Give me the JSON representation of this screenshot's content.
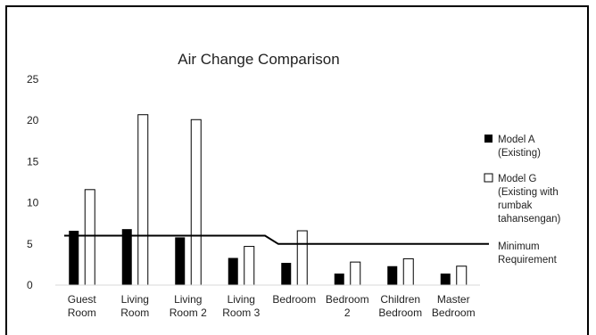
{
  "chart_data": {
    "type": "bar",
    "title": "Air Change Comparison",
    "xlabel": "",
    "ylabel": "",
    "ylim": [
      0,
      25
    ],
    "yticks": [
      0,
      5,
      10,
      15,
      20,
      25
    ],
    "grid": false,
    "legend_position": "right",
    "categories": [
      [
        "Guest",
        "Room"
      ],
      [
        "Living",
        "Room"
      ],
      [
        "Living",
        "Room 2"
      ],
      [
        "Living",
        "Room 3"
      ],
      [
        "Bedroom"
      ],
      [
        "Bedroom",
        "2"
      ],
      [
        "Children",
        "Bedroom"
      ],
      [
        "Master",
        "Bedroom"
      ]
    ],
    "series": [
      {
        "name": [
          "Model A",
          "(Existing)"
        ],
        "style": "filled",
        "color": "#000000",
        "values": [
          6.6,
          6.8,
          5.8,
          3.3,
          2.7,
          1.4,
          2.3,
          1.4
        ]
      },
      {
        "name": [
          "Model G",
          "(Existing with",
          "rumbak",
          "tahansengan)"
        ],
        "style": "outline",
        "color": "#ffffff",
        "values": [
          11.6,
          20.7,
          20.1,
          4.7,
          6.6,
          2.8,
          3.2,
          2.3
        ]
      }
    ],
    "reference_line": {
      "name": [
        "Minimum",
        "Requirement"
      ],
      "color": "#000000",
      "points": [
        [
          0,
          6
        ],
        [
          4,
          6
        ],
        [
          5,
          5
        ],
        [
          8,
          5
        ]
      ]
    }
  }
}
